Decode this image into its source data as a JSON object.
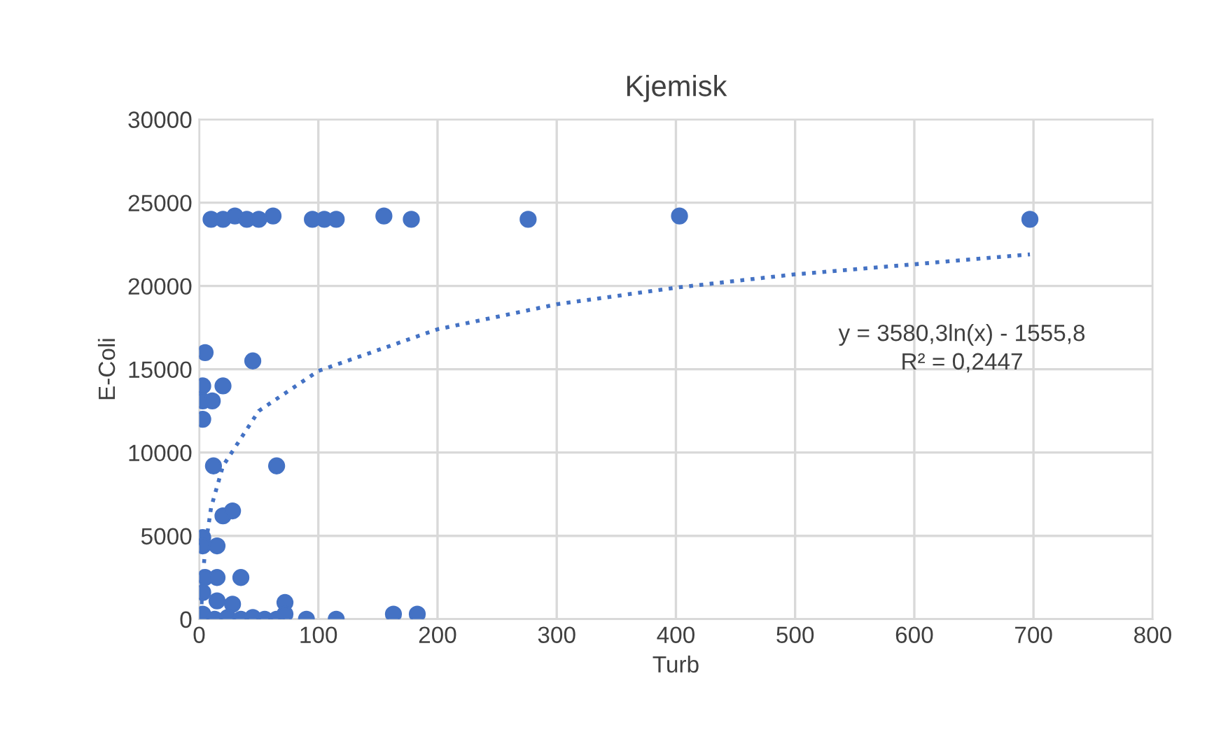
{
  "chart_data": {
    "type": "scatter",
    "title": "Kjemisk",
    "xlabel": "Turb",
    "ylabel": "E-Coli",
    "xlim": [
      0,
      800
    ],
    "ylim": [
      0,
      30000
    ],
    "xticks": [
      0,
      100,
      200,
      300,
      400,
      500,
      600,
      700,
      800
    ],
    "yticks": [
      0,
      5000,
      10000,
      15000,
      20000,
      25000,
      30000
    ],
    "grid": true,
    "legend": false,
    "series": [
      {
        "type": "scatter",
        "color": "#4472c4",
        "marker": "circle",
        "x": [
          10,
          20,
          30,
          40,
          50,
          62,
          95,
          105,
          115,
          155,
          178,
          276,
          403,
          697,
          5,
          20,
          45,
          3,
          3,
          11,
          3,
          12,
          65,
          20,
          28,
          3,
          3,
          15,
          5,
          15,
          35,
          3,
          15,
          28,
          72,
          3,
          13,
          24,
          35,
          45,
          55,
          65,
          72,
          90,
          115,
          163,
          183
        ],
        "values": [
          24000,
          24000,
          24200,
          24000,
          24000,
          24200,
          24000,
          24000,
          24000,
          24200,
          24000,
          24000,
          24200,
          24000,
          16000,
          14000,
          15500,
          14000,
          13100,
          13100,
          12000,
          9200,
          9200,
          6200,
          6500,
          4900,
          4400,
          4400,
          2500,
          2500,
          2500,
          1600,
          1100,
          900,
          1000,
          300,
          0,
          100,
          0,
          100,
          0,
          0,
          300,
          0,
          0,
          300,
          300
        ]
      },
      {
        "type": "line",
        "color": "#4472c4",
        "line_style": "dotted",
        "marker": "none",
        "x": [
          2,
          3,
          5,
          10,
          20,
          50,
          100,
          200,
          300,
          400,
          500,
          600,
          697
        ],
        "values": [
          900,
          2400,
          4200,
          6700,
          9200,
          12500,
          14900,
          17400,
          18900,
          19900,
          20700,
          21300,
          21900
        ]
      }
    ],
    "annotations": [
      "y = 3580,3ln(x) - 1555,8\nR² = 0,2447"
    ]
  }
}
